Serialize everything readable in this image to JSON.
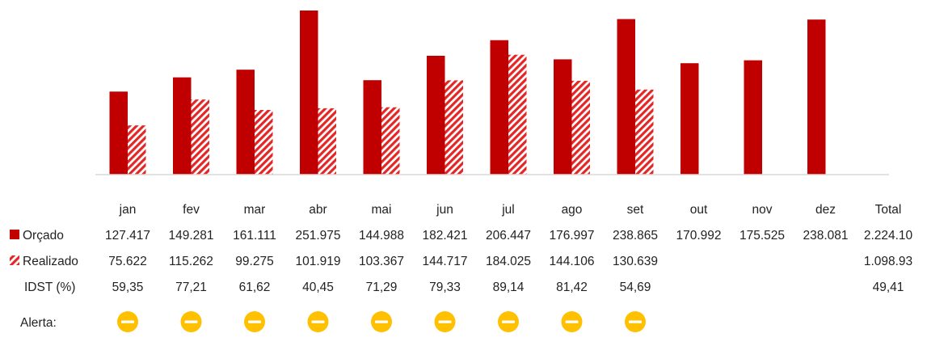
{
  "chart_data": {
    "type": "bar",
    "categories": [
      "jan",
      "fev",
      "mar",
      "abr",
      "mai",
      "jun",
      "jul",
      "ago",
      "set",
      "out",
      "nov",
      "dez"
    ],
    "total_label": "Total",
    "series": [
      {
        "name": "Orçado",
        "values": [
          127.417,
          149.281,
          161.111,
          251.975,
          144.988,
          182.421,
          206.447,
          176.997,
          238.865,
          170.992,
          175.525,
          238.081
        ],
        "labels": [
          "127.417",
          "149.281",
          "161.111",
          "251.975",
          "144.988",
          "182.421",
          "206.447",
          "176.997",
          "238.865",
          "170.992",
          "175.525",
          "238.081"
        ],
        "total": "2.224.10",
        "color": "#C00000"
      },
      {
        "name": "Realizado",
        "values": [
          75.622,
          115.262,
          99.275,
          101.919,
          103.367,
          144.717,
          184.025,
          144.106,
          130.639,
          null,
          null,
          null
        ],
        "labels": [
          "75.622",
          "115.262",
          "99.275",
          "101.919",
          "103.367",
          "144.717",
          "184.025",
          "144.106",
          "130.639",
          "",
          "",
          ""
        ],
        "total": "1.098.93",
        "color": "#E32626",
        "pattern": "diagonal-hatch"
      }
    ],
    "idst": {
      "name": "IDST (%)",
      "values": [
        "59,35",
        "77,21",
        "61,62",
        "40,45",
        "71,29",
        "79,33",
        "89,14",
        "81,42",
        "54,69",
        "",
        "",
        ""
      ],
      "total": "49,41"
    },
    "alerta": {
      "name": "Alerta:",
      "months": 9,
      "color": "#FFC000",
      "icon": "minus-circle-icon"
    },
    "ylim": [
      0,
      260
    ],
    "grid": false
  }
}
